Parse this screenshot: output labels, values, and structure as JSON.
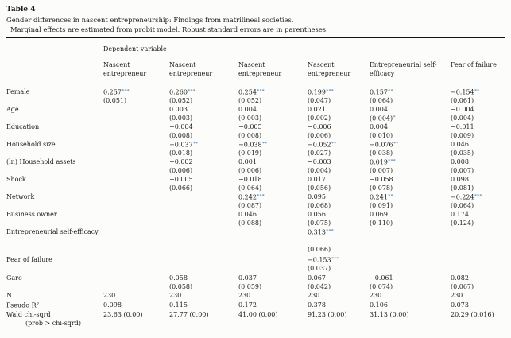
{
  "table_meta": {
    "label": "Table 4",
    "caption": "Gender differences in nascent entrepreneurship: Findings from matrilineal societies.",
    "note": "Marginal effects are estimated from probit model. Robust standard errors are in parentheses.",
    "spanner": "Dependent variable"
  },
  "colors": {
    "significance_star": "#2e74b5",
    "text": "#1c1c1c"
  },
  "columns": [
    "Nascent entrepreneur",
    "Nascent entrepreneur",
    "Nascent entrepreneur",
    "Nascent entrepreneur",
    "Entrepreneurial self-efficacy",
    "Fear of failure"
  ],
  "rows": [
    {
      "key": "female",
      "label": "Female",
      "cells": [
        {
          "est": "0.257",
          "sig": "***",
          "se": "(0.051)"
        },
        {
          "est": "0.260",
          "sig": "***",
          "se": "(0.052)"
        },
        {
          "est": "0.254",
          "sig": "***",
          "se": "(0.052)"
        },
        {
          "est": "0.199",
          "sig": "***",
          "se": "(0.047)"
        },
        {
          "est": "0.157",
          "sig": "**",
          "se": "(0.064)"
        },
        {
          "est": "−0.154",
          "sig": "**",
          "se": "(0.061)"
        }
      ]
    },
    {
      "key": "age",
      "label": "Age",
      "cells": [
        null,
        {
          "est": "0.003",
          "se": "(0.003)"
        },
        {
          "est": "0.004",
          "se": "(0.003)"
        },
        {
          "est": "0.021",
          "se": "(0.002)"
        },
        {
          "est": "0.004",
          "se": "(0.004)",
          "se_sig": "*"
        },
        {
          "est": "−0.004",
          "se": "(0.004)"
        }
      ]
    },
    {
      "key": "education",
      "label": "Education",
      "cells": [
        null,
        {
          "est": "−0.004",
          "se": "(0.008)"
        },
        {
          "est": "−0.005",
          "se": "(0.008)"
        },
        {
          "est": "−0.006",
          "se": "(0.006)"
        },
        {
          "est": "0.004",
          "se": "(0.010)"
        },
        {
          "est": "−0.011",
          "se": "(0.009)"
        }
      ]
    },
    {
      "key": "hhsize",
      "label": "Household size",
      "cells": [
        null,
        {
          "est": "−0.037",
          "sig": "**",
          "se": "(0.018)"
        },
        {
          "est": "−0.038",
          "sig": "**",
          "se": "(0.019)"
        },
        {
          "est": "−0.052",
          "sig": "**",
          "se": "(0.027)"
        },
        {
          "est": "−0.076",
          "sig": "**",
          "se": "(0.038)"
        },
        {
          "est": "0.046",
          "se": "(0.035)"
        }
      ]
    },
    {
      "key": "hhassets",
      "label": "(ln) Household assets",
      "cells": [
        null,
        {
          "est": "−0.002",
          "se": "(0.006)"
        },
        {
          "est": "0.001",
          "se": "(0.006)"
        },
        {
          "est": "−0.003",
          "se": "(0.004)"
        },
        {
          "est": "0.019",
          "sig": "***",
          "se": "(0.007)"
        },
        {
          "est": "0.008",
          "se": "(0.007)"
        }
      ]
    },
    {
      "key": "shock",
      "label": "Shock",
      "cells": [
        null,
        {
          "est": "−0.005",
          "se": "(0.066)"
        },
        {
          "est": "−0.018",
          "se": "(0.064)"
        },
        {
          "est": "0.017",
          "se": "(0.056)"
        },
        {
          "est": "−0.058",
          "se": "(0.078)"
        },
        {
          "est": "0.098",
          "se": "(0.081)"
        }
      ]
    },
    {
      "key": "network",
      "label": "Network",
      "cells": [
        null,
        null,
        {
          "est": "0.242",
          "sig": "***",
          "se": "(0.087)"
        },
        {
          "est": "0.095",
          "se": "(0.068)"
        },
        {
          "est": "0.241",
          "sig": "**",
          "se": "(0.091)"
        },
        {
          "est": "−0.224",
          "sig": "***",
          "se": "(0.064)"
        }
      ]
    },
    {
      "key": "busowner",
      "label": "Business owner",
      "cells": [
        null,
        null,
        {
          "est": "0.046",
          "se": "(0.088)"
        },
        {
          "est": "0.056",
          "se": "(0.075)"
        },
        {
          "est": "0.069",
          "se": "(0.110)"
        },
        {
          "est": "0.174",
          "se": "(0.124)"
        }
      ]
    },
    {
      "key": "ese",
      "label": "Entrepreneurial self-efficacy",
      "cells": [
        null,
        null,
        null,
        {
          "est": "0.313",
          "sig": "***",
          "se": "(0.066)"
        },
        null,
        null
      ]
    },
    {
      "key": "fof",
      "label": "Fear of failure",
      "cells": [
        null,
        null,
        null,
        {
          "est": "−0.153",
          "sig": "***",
          "se": "(0.037)"
        },
        null,
        null
      ]
    },
    {
      "key": "garo",
      "label": "Garo",
      "cells": [
        null,
        {
          "est": "0.058",
          "se": "(0.058)"
        },
        {
          "est": "0.037",
          "se": "(0.059)"
        },
        {
          "est": "0.067",
          "se": "(0.042)"
        },
        {
          "est": "−0.061",
          "se": "(0.074)"
        },
        {
          "est": "0.082",
          "se": "(0.067)"
        }
      ]
    },
    {
      "key": "n",
      "label": "N",
      "cells": [
        "230",
        "230",
        "230",
        "230",
        "230",
        "230"
      ]
    },
    {
      "key": "pseudor2",
      "label": "Pseudo R",
      "label_sup": "2",
      "cells": [
        "0.098",
        "0.115",
        "0.172",
        "0.378",
        "0.106",
        "0.073"
      ]
    },
    {
      "key": "wald",
      "label": "Wald chi-sqrd",
      "label2": "(prob > chi-sqrd)",
      "cells": [
        "23.63 (0.00)",
        "27.77 (0.00)",
        "41.00 (0.00)",
        "91.23 (0.00)",
        "31.13 (0.00)",
        "20.29 (0.016)"
      ]
    }
  ]
}
